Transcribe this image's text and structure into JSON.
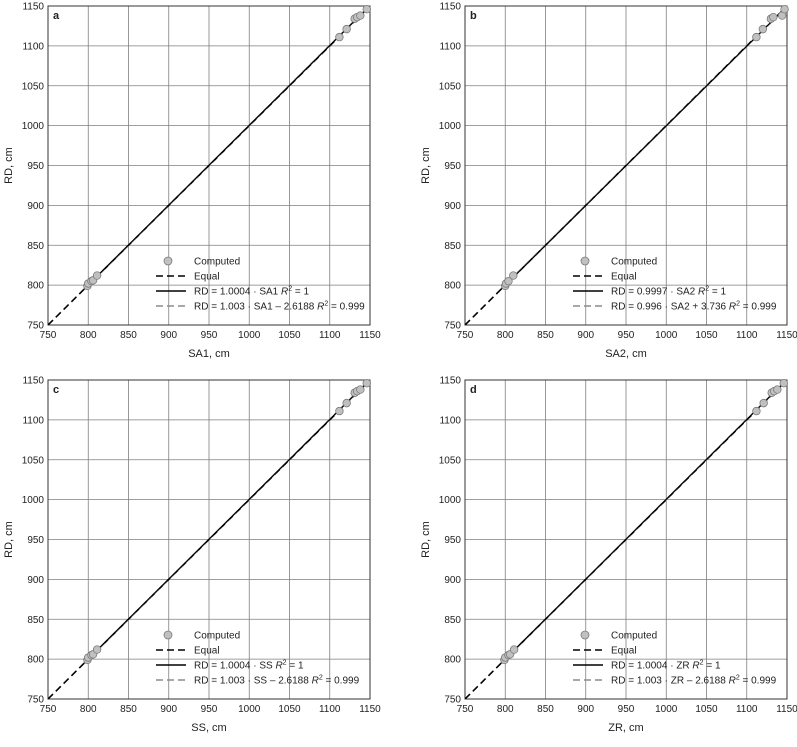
{
  "figure": {
    "background": "#ffffff",
    "grid_color": "#7f7f7f",
    "frame_color": "#333333",
    "point_fill": "#c0c0c0",
    "point_stroke": "#7a7a7a",
    "equal_color": "#000000",
    "fit_color": "#000000",
    "fit2_color": "#8c8c8c"
  },
  "chart_data": [
    {
      "type": "scatter",
      "panel": "a",
      "xlabel": "SA1, cm",
      "ylabel": "RD, cm",
      "xlim": [
        750,
        1150
      ],
      "ylim": [
        750,
        1150
      ],
      "xticks": [
        750,
        800,
        850,
        900,
        950,
        1000,
        1050,
        1100,
        1150
      ],
      "yticks": [
        750,
        800,
        850,
        900,
        950,
        1000,
        1050,
        1100,
        1150
      ],
      "grid": true,
      "legend_position": "bottom-right",
      "points": [
        [
          799,
          799
        ],
        [
          800,
          802
        ],
        [
          804,
          805
        ],
        [
          806,
          806
        ],
        [
          811,
          812
        ],
        [
          1112,
          1111
        ],
        [
          1121,
          1121
        ],
        [
          1131,
          1134
        ],
        [
          1134,
          1136
        ],
        [
          1138,
          1138
        ],
        [
          1146,
          1146
        ]
      ],
      "legend": {
        "computed": "Computed",
        "equal": "Equal",
        "fit1": "RD = 1.0004 · SA1   ",
        "fit1_r2": "R",
        "fit1_r2_sup": "2",
        "fit1_r2_val": " = 1",
        "fit2": "RD = 1.003 · SA1 – 2.6188   ",
        "fit2_r2": "R",
        "fit2_r2_sup": "2",
        "fit2_r2_val": " = 0.999"
      },
      "lines": {
        "equal": {
          "slope": 1,
          "intercept": 0
        },
        "fit1": {
          "slope": 1.0004,
          "intercept": 0
        },
        "fit2": {
          "slope": 1.003,
          "intercept": -2.6188
        }
      }
    },
    {
      "type": "scatter",
      "panel": "b",
      "xlabel": "SA2, cm",
      "ylabel": "RD, cm",
      "xlim": [
        750,
        1150
      ],
      "ylim": [
        750,
        1150
      ],
      "xticks": [
        750,
        800,
        850,
        900,
        950,
        1000,
        1050,
        1100,
        1150
      ],
      "yticks": [
        750,
        800,
        850,
        900,
        950,
        1000,
        1050,
        1100,
        1150
      ],
      "grid": true,
      "legend_position": "bottom-right",
      "points": [
        [
          800,
          799
        ],
        [
          801,
          802
        ],
        [
          804,
          805
        ],
        [
          810,
          812
        ],
        [
          1112,
          1111
        ],
        [
          1120,
          1121
        ],
        [
          1130,
          1134
        ],
        [
          1133,
          1136
        ],
        [
          1144,
          1138
        ],
        [
          1147,
          1146
        ]
      ],
      "legend": {
        "computed": "Computed",
        "equal": "Equal",
        "fit1": "RD = 0.9997 · SA2   ",
        "fit1_r2": "R",
        "fit1_r2_sup": "2",
        "fit1_r2_val": " = 1",
        "fit2": "RD = 0.996 · SA2 + 3.736   ",
        "fit2_r2": "R",
        "fit2_r2_sup": "2",
        "fit2_r2_val": " = 0.999"
      },
      "lines": {
        "equal": {
          "slope": 1,
          "intercept": 0
        },
        "fit1": {
          "slope": 0.9997,
          "intercept": 0
        },
        "fit2": {
          "slope": 0.996,
          "intercept": 3.736
        }
      }
    },
    {
      "type": "scatter",
      "panel": "c",
      "xlabel": "SS, cm",
      "ylabel": "RD, cm",
      "xlim": [
        750,
        1150
      ],
      "ylim": [
        750,
        1150
      ],
      "xticks": [
        750,
        800,
        850,
        900,
        950,
        1000,
        1050,
        1100,
        1150
      ],
      "yticks": [
        750,
        800,
        850,
        900,
        950,
        1000,
        1050,
        1100,
        1150
      ],
      "grid": true,
      "legend_position": "bottom-right",
      "points": [
        [
          799,
          799
        ],
        [
          800,
          802
        ],
        [
          804,
          805
        ],
        [
          806,
          806
        ],
        [
          811,
          812
        ],
        [
          1112,
          1111
        ],
        [
          1121,
          1121
        ],
        [
          1131,
          1134
        ],
        [
          1134,
          1136
        ],
        [
          1138,
          1138
        ],
        [
          1146,
          1146
        ]
      ],
      "legend": {
        "computed": "Computed",
        "equal": "Equal",
        "fit1": "RD = 1.0004 · SS   ",
        "fit1_r2": "R",
        "fit1_r2_sup": "2",
        "fit1_r2_val": " = 1",
        "fit2": "RD = 1.003 · SS – 2.6188   ",
        "fit2_r2": "R",
        "fit2_r2_sup": "2",
        "fit2_r2_val": " = 0.999"
      },
      "lines": {
        "equal": {
          "slope": 1,
          "intercept": 0
        },
        "fit1": {
          "slope": 1.0004,
          "intercept": 0
        },
        "fit2": {
          "slope": 1.003,
          "intercept": -2.6188
        }
      }
    },
    {
      "type": "scatter",
      "panel": "d",
      "xlabel": "ZR, cm",
      "ylabel": "RD, cm",
      "xlim": [
        750,
        1150
      ],
      "ylim": [
        750,
        1150
      ],
      "xticks": [
        750,
        800,
        850,
        900,
        950,
        1000,
        1050,
        1100,
        1150
      ],
      "yticks": [
        750,
        800,
        850,
        900,
        950,
        1000,
        1050,
        1100,
        1150
      ],
      "grid": true,
      "legend_position": "bottom-right",
      "points": [
        [
          799,
          799
        ],
        [
          800,
          802
        ],
        [
          804,
          805
        ],
        [
          806,
          806
        ],
        [
          811,
          812
        ],
        [
          1112,
          1111
        ],
        [
          1121,
          1121
        ],
        [
          1131,
          1134
        ],
        [
          1134,
          1136
        ],
        [
          1138,
          1138
        ],
        [
          1146,
          1146
        ]
      ],
      "legend": {
        "computed": "Computed",
        "equal": "Equal",
        "fit1": "RD = 1.0004 · ZR   ",
        "fit1_r2": "R",
        "fit1_r2_sup": "2",
        "fit1_r2_val": " = 1",
        "fit2": "RD = 1.003 · ZR – 2.6188   ",
        "fit2_r2": "R",
        "fit2_r2_sup": "2",
        "fit2_r2_val": " = 0.999"
      },
      "lines": {
        "equal": {
          "slope": 1,
          "intercept": 0
        },
        "fit1": {
          "slope": 1.0004,
          "intercept": 0
        },
        "fit2": {
          "slope": 1.003,
          "intercept": -2.6188
        }
      }
    }
  ]
}
